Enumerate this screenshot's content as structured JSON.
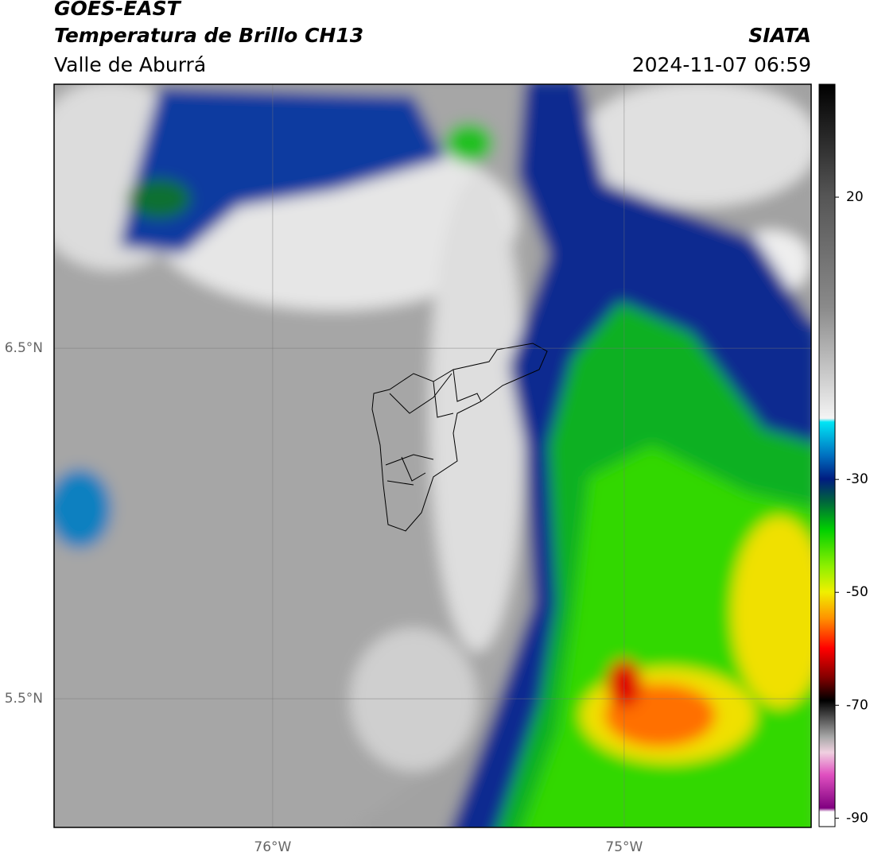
{
  "header": {
    "title": "GOES-EAST",
    "subtitle": "Temperatura de Brillo CH13",
    "region": "Valle de Aburrá",
    "source": "SIATA",
    "datetime": "2024-11-07 06:59"
  },
  "map": {
    "lonlim": [
      -76.622,
      -74.468
    ],
    "latlim": [
      5.133,
      7.253
    ],
    "lonticks": [
      {
        "value": -76,
        "label": "76°W"
      },
      {
        "value": -75,
        "label": "75°W"
      }
    ],
    "latticks": [
      {
        "value": 6.5,
        "label": "6.5°N"
      },
      {
        "value": 5.5,
        "label": "5.5°N"
      }
    ],
    "grid": true
  },
  "colorbar": {
    "lim": [
      -91.5,
      40
    ],
    "ticks": [
      20,
      -30,
      -50,
      -70,
      -90
    ]
  }
}
